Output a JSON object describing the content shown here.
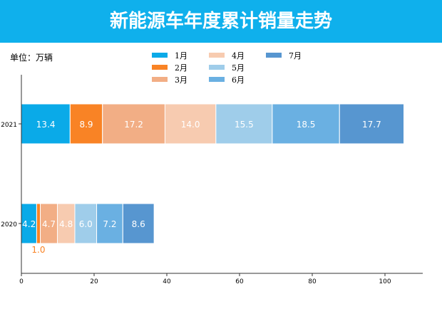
{
  "title": "新能源车年度累计销量走势",
  "unit": "单位：万辆",
  "chart_data": {
    "type": "bar",
    "orientation": "horizontal",
    "stacked": true,
    "categories": [
      "2021",
      "2020"
    ],
    "series": [
      {
        "name": "1月",
        "color": "#0aaae8",
        "values": [
          13.4,
          4.2
        ]
      },
      {
        "name": "2月",
        "color": "#f98325",
        "values": [
          8.9,
          1.0
        ]
      },
      {
        "name": "3月",
        "color": "#f2ae85",
        "values": [
          17.2,
          4.7
        ]
      },
      {
        "name": "4月",
        "color": "#f7cbb0",
        "values": [
          14.0,
          4.8
        ]
      },
      {
        "name": "5月",
        "color": "#9fcdea",
        "values": [
          15.5,
          6.0
        ]
      },
      {
        "name": "6月",
        "color": "#6ab0e2",
        "values": [
          18.5,
          7.2
        ]
      },
      {
        "name": "7月",
        "color": "#5796d0",
        "values": [
          17.7,
          8.6
        ]
      }
    ],
    "xlim": [
      0,
      110
    ],
    "xticks": [
      0,
      20,
      40,
      60,
      80,
      100
    ],
    "legend": "top-center"
  }
}
